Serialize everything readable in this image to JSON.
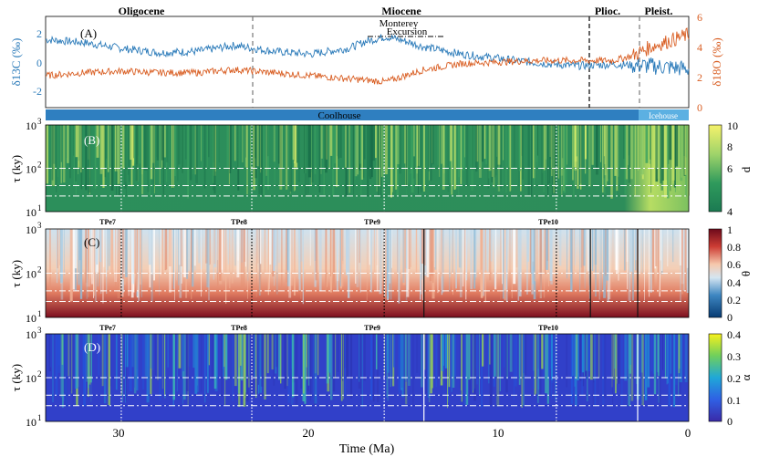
{
  "chart_data": [
    {
      "panel": "(A)",
      "type": "line",
      "xlabel": "Time (Ma)",
      "xlim": [
        34,
        0
      ],
      "x_ticks": [
        "30",
        "20",
        "10",
        "0"
      ],
      "y_left_label": "δ13C (‰)",
      "y_left_ticks": [
        "2",
        "0",
        "-2"
      ],
      "y_right_label": "δ18O (‰)",
      "y_right_ticks": [
        "6",
        "4",
        "2",
        "0"
      ],
      "epochs": [
        "Oligocene",
        "Miocene",
        "Plioc.",
        "Pleist."
      ],
      "annotations": [
        "Monterey",
        "Excursion"
      ],
      "climate_states": [
        "Coolhouse",
        "Icehouse"
      ],
      "boundaries_ma": [
        23.0,
        5.3,
        2.6
      ],
      "series": [
        {
          "name": "δ13C",
          "color": "#2a7ab9",
          "x": [
            34,
            32,
            30,
            28,
            26,
            24,
            22,
            20,
            18,
            17,
            16,
            15,
            14,
            12,
            10,
            8,
            6,
            4,
            2,
            0
          ],
          "y": [
            1.6,
            1.4,
            1.0,
            0.7,
            0.8,
            1.2,
            0.8,
            0.6,
            1.0,
            1.5,
            1.8,
            1.5,
            1.1,
            0.6,
            0.3,
            0.0,
            -0.2,
            -0.1,
            -0.2,
            -0.4
          ]
        },
        {
          "name": "δ18O",
          "color": "#d95f24",
          "x": [
            34,
            32,
            30,
            28,
            26,
            24,
            22,
            20,
            18,
            16,
            14,
            12,
            10,
            8,
            6,
            4,
            3,
            2,
            1,
            0
          ],
          "y": [
            2.1,
            2.3,
            2.4,
            2.3,
            2.3,
            2.5,
            2.3,
            2.1,
            1.9,
            1.7,
            2.5,
            2.9,
            3.0,
            3.1,
            3.1,
            3.1,
            3.4,
            4.0,
            4.4,
            4.8
          ]
        }
      ]
    },
    {
      "panel": "(B)",
      "type": "heatmap",
      "ylabel": "τ (ky)",
      "y_ticks": [
        "10^3",
        "10^2",
        "10^1"
      ],
      "colorbar_label": "d",
      "colorbar_ticks": [
        "10",
        "8",
        "6",
        "4"
      ]
    },
    {
      "panel": "(C)",
      "type": "heatmap",
      "ylabel": "τ (ky)",
      "y_ticks": [
        "10^3",
        "10^2",
        "10^1"
      ],
      "colorbar_label": "θ",
      "colorbar_ticks": [
        "1",
        "0.8",
        "0.6",
        "0.4",
        "0.2",
        "0"
      ],
      "markers": [
        "TPe7",
        "TPe8",
        "TPe9",
        "TPe10"
      ]
    },
    {
      "panel": "(D)",
      "type": "heatmap",
      "ylabel": "τ (ky)",
      "y_ticks": [
        "10^3",
        "10^2",
        "10^1"
      ],
      "colorbar_label": "α",
      "colorbar_ticks": [
        "0.4",
        "0.3",
        "0.2",
        "0.1",
        "0"
      ],
      "markers": [
        "TPe7",
        "TPe8",
        "TPe9",
        "TPe10"
      ]
    }
  ]
}
